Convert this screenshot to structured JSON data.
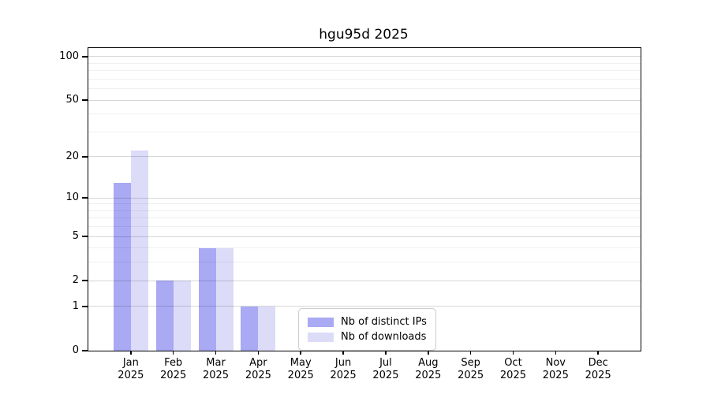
{
  "chart_data": {
    "type": "bar",
    "title": "hgu95d 2025",
    "categories": [
      "Jan",
      "Feb",
      "Mar",
      "Apr",
      "May",
      "Jun",
      "Jul",
      "Aug",
      "Sep",
      "Oct",
      "Nov",
      "Dec"
    ],
    "year_label": "2025",
    "series": [
      {
        "name": "Nb of distinct IPs",
        "color": "#a9a9f4",
        "values": [
          13,
          2,
          4,
          1,
          0,
          0,
          0,
          0,
          0,
          0,
          0,
          0
        ]
      },
      {
        "name": "Nb of downloads",
        "color": "#dcdcf9",
        "values": [
          22,
          2,
          4,
          1,
          0,
          0,
          0,
          0,
          0,
          0,
          0,
          0
        ]
      }
    ],
    "xlabel": "",
    "ylabel": "",
    "yscale": "log1p",
    "ylim": [
      0,
      113
    ],
    "yticks": [
      0,
      1,
      2,
      5,
      10,
      20,
      50,
      100
    ],
    "minor_gridlines": [
      3,
      4,
      6,
      7,
      8,
      9,
      30,
      40,
      60,
      70,
      80,
      90
    ],
    "grid": true,
    "legend_position": "inside-bottom-center"
  },
  "colors": {
    "background": "#ffffff",
    "axis": "#000000",
    "legend_border": "#cccccc",
    "bar_distinct_ips": "#a9a9f4",
    "bar_downloads": "#dcdcf9"
  }
}
